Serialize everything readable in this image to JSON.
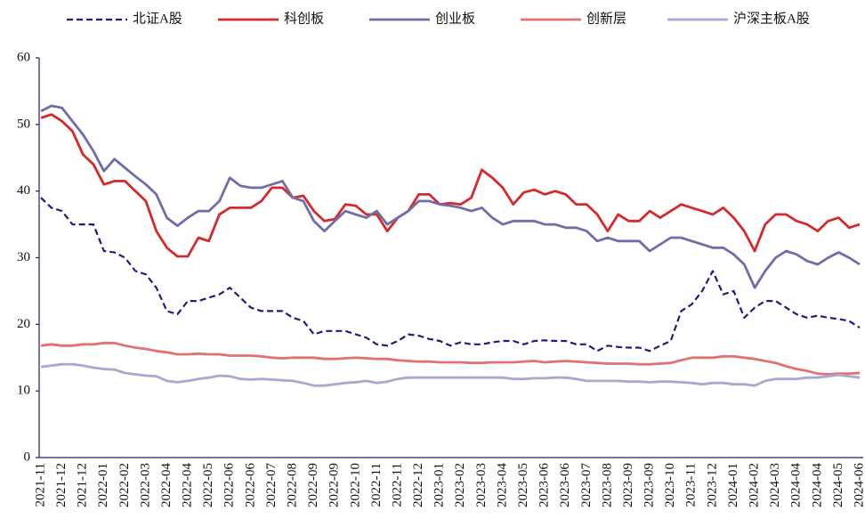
{
  "chart_data": {
    "type": "line",
    "categories": [
      "2021-11",
      null,
      "2021-12",
      null,
      "2021-12",
      null,
      "2022-01",
      null,
      "2022-02",
      null,
      "2022-03",
      null,
      "2022-04",
      null,
      "2022-04",
      null,
      "2022-05",
      null,
      "2022-06",
      null,
      "2022-06",
      null,
      "2022-07",
      null,
      "2022-08",
      null,
      "2022-09",
      null,
      "2022-09",
      null,
      "2022-10",
      null,
      "2022-11",
      null,
      "2022-11",
      null,
      "2022-12",
      null,
      "2023-01",
      null,
      "2023-02",
      null,
      "2023-03",
      null,
      "2023-04",
      null,
      "2023-05",
      null,
      "2023-06",
      null,
      "2023-06",
      null,
      "2023-07",
      null,
      "2023-08",
      null,
      "2023-09",
      null,
      "2023-09",
      null,
      "2023-10",
      null,
      "2023-11",
      null,
      "2023-12",
      null,
      "2024-01",
      null,
      "2024-02",
      null,
      "2024-03",
      null,
      "2024-04",
      null,
      "2024-04",
      null,
      "2024-05",
      null,
      "2024-06"
    ],
    "series": [
      {
        "name": "北证A股",
        "color": "#1f1f7a",
        "dashed": true,
        "values": [
          39,
          37.5,
          37,
          35,
          35,
          35,
          31,
          30.8,
          30,
          28,
          27.5,
          25.5,
          22,
          21.5,
          23.5,
          23.5,
          24,
          24.5,
          25.5,
          24,
          22.5,
          22,
          22,
          22,
          21,
          20.5,
          18.5,
          19,
          19,
          19,
          18.5,
          18,
          17,
          16.8,
          17.5,
          18.5,
          18.3,
          17.8,
          17.5,
          16.8,
          17.3,
          17,
          17,
          17.3,
          17.5,
          17.5,
          17,
          17.5,
          17.6,
          17.5,
          17.5,
          17,
          17,
          16,
          16.8,
          16.6,
          16.5,
          16.5,
          16,
          16.8,
          17.5,
          22,
          23,
          25,
          28,
          24.5,
          25,
          21,
          22.5,
          23.5,
          23.5,
          22.5,
          21.5,
          21,
          21.3,
          21,
          20.8,
          20.5,
          19.5
        ]
      },
      {
        "name": "科创板",
        "color": "#d62a2a",
        "values": [
          51,
          51.5,
          50.5,
          49,
          45.5,
          44,
          41,
          41.5,
          41.5,
          40,
          38.5,
          34,
          31.5,
          30.2,
          30.2,
          33,
          32.5,
          36.5,
          37.5,
          37.5,
          37.5,
          38.5,
          40.5,
          40.5,
          39,
          39.3,
          37,
          35.5,
          35.8,
          38,
          37.8,
          36.5,
          36.5,
          34,
          36,
          37,
          39.5,
          39.5,
          38,
          38.2,
          38,
          39,
          43.2,
          42,
          40.5,
          38,
          39.8,
          40.2,
          39.5,
          40,
          39.5,
          38,
          38,
          36.5,
          34,
          36.5,
          35.5,
          35.5,
          37,
          36,
          37,
          38,
          37.5,
          37,
          36.5,
          37.5,
          36,
          34,
          31,
          35,
          36.5,
          36.5,
          35.5,
          35,
          34,
          35.5,
          36,
          34.5,
          35
        ]
      },
      {
        "name": "创业板",
        "color": "#6e6ea8",
        "values": [
          52,
          52.8,
          52.5,
          50.5,
          48.5,
          46,
          43,
          44.8,
          43.5,
          42.2,
          41,
          39.5,
          36,
          34.8,
          36,
          37,
          37,
          38.5,
          42,
          40.8,
          40.5,
          40.5,
          41,
          41.5,
          39,
          38.5,
          35.5,
          34,
          35.5,
          37,
          36.5,
          36,
          37,
          35,
          36,
          37,
          38.5,
          38.5,
          38,
          37.8,
          37.5,
          37,
          37.5,
          36,
          35,
          35.5,
          35.5,
          35.5,
          35,
          35,
          34.5,
          34.5,
          34,
          32.5,
          33,
          32.5,
          32.5,
          32.5,
          31,
          32,
          33,
          33,
          32.5,
          32,
          31.5,
          31.5,
          30.5,
          29,
          25.5,
          28,
          30,
          31,
          30.5,
          29.5,
          29,
          30,
          30.8,
          30,
          29
        ]
      },
      {
        "name": "创新层",
        "color": "#e27272",
        "values": [
          16.8,
          17,
          16.8,
          16.8,
          17,
          17,
          17.2,
          17.2,
          16.8,
          16.5,
          16.3,
          16,
          15.8,
          15.5,
          15.5,
          15.6,
          15.5,
          15.5,
          15.3,
          15.3,
          15.3,
          15.2,
          15,
          14.9,
          15,
          15,
          15,
          14.8,
          14.8,
          14.9,
          15,
          14.9,
          14.8,
          14.8,
          14.6,
          14.5,
          14.4,
          14.4,
          14.3,
          14.3,
          14.3,
          14.2,
          14.2,
          14.3,
          14.3,
          14.3,
          14.4,
          14.5,
          14.3,
          14.4,
          14.5,
          14.4,
          14.3,
          14.2,
          14.1,
          14.1,
          14.1,
          14,
          14,
          14.1,
          14.2,
          14.6,
          15,
          15,
          15,
          15.2,
          15.2,
          15,
          14.8,
          14.5,
          14.2,
          13.7,
          13.3,
          13,
          12.6,
          12.5,
          12.6,
          12.6,
          12.7
        ]
      },
      {
        "name": "沪深主板A股",
        "color": "#a9a9cf",
        "values": [
          13.6,
          13.8,
          14,
          14,
          13.8,
          13.5,
          13.3,
          13.2,
          12.7,
          12.5,
          12.3,
          12.2,
          11.5,
          11.3,
          11.5,
          11.8,
          12,
          12.3,
          12.2,
          11.8,
          11.7,
          11.8,
          11.7,
          11.6,
          11.5,
          11.2,
          10.8,
          10.8,
          11,
          11.2,
          11.3,
          11.5,
          11.2,
          11.4,
          11.8,
          12,
          12,
          12,
          12,
          12,
          12,
          12,
          12,
          12,
          12,
          11.8,
          11.8,
          11.9,
          11.9,
          12,
          12,
          11.8,
          11.5,
          11.5,
          11.5,
          11.5,
          11.4,
          11.4,
          11.3,
          11.4,
          11.4,
          11.3,
          11.2,
          11,
          11.2,
          11.2,
          11,
          11,
          10.8,
          11.5,
          11.8,
          11.8,
          11.8,
          12,
          12,
          12.2,
          12.4,
          12.2,
          12
        ]
      }
    ],
    "ylim": [
      0,
      60
    ],
    "yticks": [
      0,
      10,
      20,
      30,
      40,
      50,
      60
    ],
    "grid": false,
    "legend": "top"
  }
}
